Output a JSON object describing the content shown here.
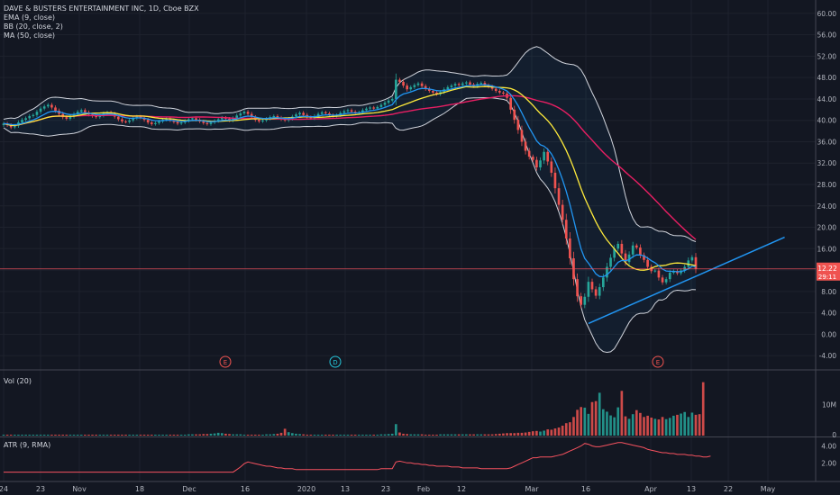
{
  "legend": {
    "symbol": "DAVE & BUSTERS ENTERTAINMENT INC, 1D, Cboe BZX",
    "ema": "EMA (9, close)",
    "bb": "BB (20, close, 2)",
    "ma": "MA (50, close)"
  },
  "volume_pane": {
    "label": "Vol (20)",
    "ticks": [
      "10M",
      "0"
    ]
  },
  "atr_pane": {
    "label": "ATR (9, RMA)",
    "ticks": [
      "4.00",
      "2.00"
    ]
  },
  "colors": {
    "background": "#131722",
    "up": "#26a69a",
    "down": "#ef5350",
    "ema": "#2196f3",
    "ma": "#e91e63",
    "bb_mid": "#ffeb3b",
    "bb_band": "#d1d4dc",
    "trendline": "#2196f3",
    "atr": "#f7525f",
    "price_line": "#f7525f"
  },
  "chart_data": {
    "type": "candlestick",
    "ylim": [
      -6,
      62
    ],
    "y_ticks": [
      "60.00",
      "56.00",
      "52.00",
      "48.00",
      "44.00",
      "40.00",
      "36.00",
      "32.00",
      "28.00",
      "24.00",
      "20.00",
      "16.00",
      "12.00",
      "8.00",
      "4.00",
      "0.00",
      "-4.00"
    ],
    "x_ticks": [
      "24",
      "23",
      "Nov",
      "18",
      "Dec",
      "16",
      "2020",
      "13",
      "23",
      "Feb",
      "12",
      "Mar",
      "16",
      "Apr",
      "13",
      "22",
      "May"
    ],
    "current_price": "12.22",
    "countdown": "29:11",
    "close_series": [
      39.4,
      39.1,
      38.7,
      39.0,
      39.6,
      40.1,
      40.4,
      40.8,
      41.0,
      41.6,
      42.2,
      42.6,
      42.9,
      42.4,
      41.8,
      41.2,
      40.6,
      40.3,
      40.7,
      41.2,
      41.6,
      41.9,
      41.5,
      41.1,
      40.8,
      40.6,
      40.9,
      41.3,
      41.5,
      41.2,
      40.7,
      40.2,
      39.8,
      39.7,
      40.0,
      40.4,
      40.7,
      40.5,
      40.1,
      39.6,
      39.3,
      39.5,
      39.8,
      40.1,
      40.3,
      40.0,
      39.7,
      39.4,
      39.6,
      39.9,
      40.2,
      40.4,
      40.1,
      39.8,
      39.5,
      39.3,
      39.6,
      39.9,
      40.2,
      40.5,
      40.3,
      40.0,
      40.4,
      40.9,
      41.3,
      41.6,
      41.2,
      40.6,
      40.1,
      39.8,
      40.0,
      40.3,
      40.6,
      40.8,
      40.5,
      40.2,
      40.0,
      40.3,
      40.7,
      41.1,
      41.4,
      41.0,
      40.6,
      40.4,
      40.8,
      41.2,
      41.5,
      41.3,
      41.0,
      40.8,
      41.0,
      41.4,
      41.7,
      41.9,
      41.6,
      41.3,
      41.5,
      41.9,
      42.2,
      42.4,
      42.2,
      42.5,
      42.9,
      43.3,
      43.7,
      44.0,
      47.6,
      47.2,
      46.5,
      45.8,
      46.2,
      46.6,
      46.9,
      46.4,
      45.9,
      45.5,
      45.2,
      44.9,
      45.3,
      45.8,
      46.2,
      46.5,
      46.8,
      46.6,
      46.9,
      47.1,
      46.7,
      46.4,
      46.8,
      47.0,
      46.6,
      46.3,
      45.9,
      45.5,
      45.2,
      45.0,
      44.2,
      42.0,
      40.1,
      38.2,
      36.0,
      34.3,
      33.2,
      32.6,
      31.2,
      32.5,
      34.1,
      32.3,
      30.2,
      27.3,
      24.2,
      21.4,
      17.9,
      14.2,
      10.3,
      7.1,
      5.5,
      7.0,
      9.8,
      8.4,
      7.2,
      8.8,
      10.6,
      12.6,
      14.3,
      16.0,
      16.9,
      15.1,
      13.5,
      14.9,
      16.6,
      16.2,
      14.8,
      13.9,
      12.6,
      11.8,
      11.9,
      10.6,
      9.7,
      10.3,
      11.5,
      11.8,
      11.4,
      11.9,
      12.6,
      13.8,
      14.4,
      12.22
    ],
    "volume_series": [
      0.3,
      0.3,
      0.3,
      0.3,
      0.3,
      0.3,
      0.3,
      0.3,
      0.3,
      0.3,
      0.3,
      0.3,
      0.3,
      0.3,
      0.3,
      0.3,
      0.3,
      0.3,
      0.3,
      0.3,
      0.3,
      0.3,
      0.3,
      0.3,
      0.3,
      0.3,
      0.3,
      0.3,
      0.3,
      0.3,
      0.3,
      0.3,
      0.3,
      0.3,
      0.3,
      0.3,
      0.3,
      0.3,
      0.3,
      0.3,
      0.3,
      0.3,
      0.3,
      0.3,
      0.3,
      0.3,
      0.3,
      0.3,
      0.3,
      0.3,
      0.4,
      0.4,
      0.4,
      0.4,
      0.5,
      0.5,
      0.6,
      0.7,
      0.9,
      0.8,
      0.6,
      0.5,
      0.4,
      0.4,
      0.4,
      0.3,
      0.3,
      0.3,
      0.3,
      0.3,
      0.3,
      0.4,
      0.4,
      0.5,
      0.6,
      0.9,
      2.2,
      1.1,
      0.8,
      0.6,
      0.5,
      0.4,
      0.3,
      0.3,
      0.3,
      0.3,
      0.3,
      0.3,
      0.3,
      0.3,
      0.3,
      0.3,
      0.3,
      0.3,
      0.3,
      0.3,
      0.3,
      0.3,
      0.3,
      0.3,
      0.3,
      0.3,
      0.4,
      0.4,
      0.5,
      0.6,
      3.7,
      1.0,
      0.6,
      0.5,
      0.4,
      0.4,
      0.4,
      0.4,
      0.3,
      0.3,
      0.3,
      0.3,
      0.4,
      0.4,
      0.4,
      0.4,
      0.4,
      0.4,
      0.4,
      0.4,
      0.4,
      0.4,
      0.4,
      0.4,
      0.4,
      0.4,
      0.4,
      0.5,
      0.6,
      0.7,
      0.8,
      0.8,
      0.8,
      0.9,
      0.9,
      1.0,
      1.2,
      1.4,
      1.5,
      1.3,
      1.6,
      2.0,
      1.9,
      2.3,
      2.6,
      3.2,
      4.0,
      4.3,
      6.0,
      8.3,
      9.2,
      9.0,
      7.0,
      10.8,
      11.1,
      13.8,
      8.5,
      7.7,
      6.5,
      5.9,
      9.1,
      14.4,
      6.2,
      5.4,
      6.9,
      8.2,
      7.3,
      6.0,
      6.4,
      5.8,
      5.4,
      5.2,
      6.0,
      5.3,
      5.7,
      6.4,
      6.7,
      7.1,
      7.6,
      6.0,
      7.4,
      6.7,
      6.9,
      17.2
    ],
    "atr_series": [
      0.9,
      0.9,
      0.9,
      0.9,
      0.9,
      0.9,
      0.9,
      0.9,
      0.9,
      0.9,
      0.9,
      0.9,
      0.9,
      0.9,
      0.9,
      0.9,
      0.9,
      0.9,
      0.9,
      0.9,
      0.9,
      0.9,
      0.9,
      0.9,
      0.9,
      0.9,
      0.9,
      0.9,
      0.9,
      0.9,
      0.9,
      0.9,
      0.9,
      0.9,
      0.9,
      0.9,
      0.9,
      0.9,
      0.9,
      0.9,
      0.9,
      0.9,
      0.9,
      0.9,
      0.9,
      0.9,
      0.9,
      0.9,
      0.9,
      0.9,
      0.9,
      0.9,
      0.9,
      0.9,
      0.9,
      0.9,
      0.9,
      0.9,
      0.9,
      0.9,
      0.9,
      0.9,
      0.9,
      1.2,
      1.5,
      1.9,
      2.1,
      2.0,
      1.9,
      1.8,
      1.7,
      1.6,
      1.6,
      1.5,
      1.4,
      1.4,
      1.3,
      1.3,
      1.3,
      1.2,
      1.2,
      1.2,
      1.2,
      1.2,
      1.2,
      1.2,
      1.2,
      1.2,
      1.2,
      1.2,
      1.2,
      1.2,
      1.2,
      1.2,
      1.2,
      1.2,
      1.2,
      1.2,
      1.2,
      1.2,
      1.2,
      1.2,
      1.3,
      1.3,
      1.3,
      1.3,
      2.1,
      2.2,
      2.1,
      2.0,
      2.0,
      1.9,
      1.9,
      1.8,
      1.8,
      1.7,
      1.7,
      1.6,
      1.6,
      1.6,
      1.6,
      1.5,
      1.5,
      1.5,
      1.4,
      1.4,
      1.4,
      1.4,
      1.4,
      1.3,
      1.3,
      1.3,
      1.3,
      1.3,
      1.3,
      1.3,
      1.3,
      1.4,
      1.6,
      1.8,
      2.0,
      2.2,
      2.4,
      2.6,
      2.6,
      2.7,
      2.7,
      2.7,
      2.7,
      2.8,
      2.9,
      3.0,
      3.2,
      3.4,
      3.6,
      3.8,
      4.0,
      4.3,
      4.2,
      4.0,
      3.9,
      3.9,
      4.0,
      4.1,
      4.2,
      4.3,
      4.4,
      4.4,
      4.3,
      4.2,
      4.1,
      4.0,
      3.9,
      3.8,
      3.6,
      3.5,
      3.4,
      3.3,
      3.2,
      3.2,
      3.1,
      3.1,
      3.0,
      3.0,
      3.0,
      2.9,
      2.9,
      2.8,
      2.8,
      2.7,
      2.7,
      2.8
    ],
    "earnings_markers": [
      "E",
      "D",
      "E"
    ],
    "trendline": {
      "x_start": 158,
      "y_start": 2.0,
      "x_end": 202,
      "y_end": 15.4
    }
  }
}
